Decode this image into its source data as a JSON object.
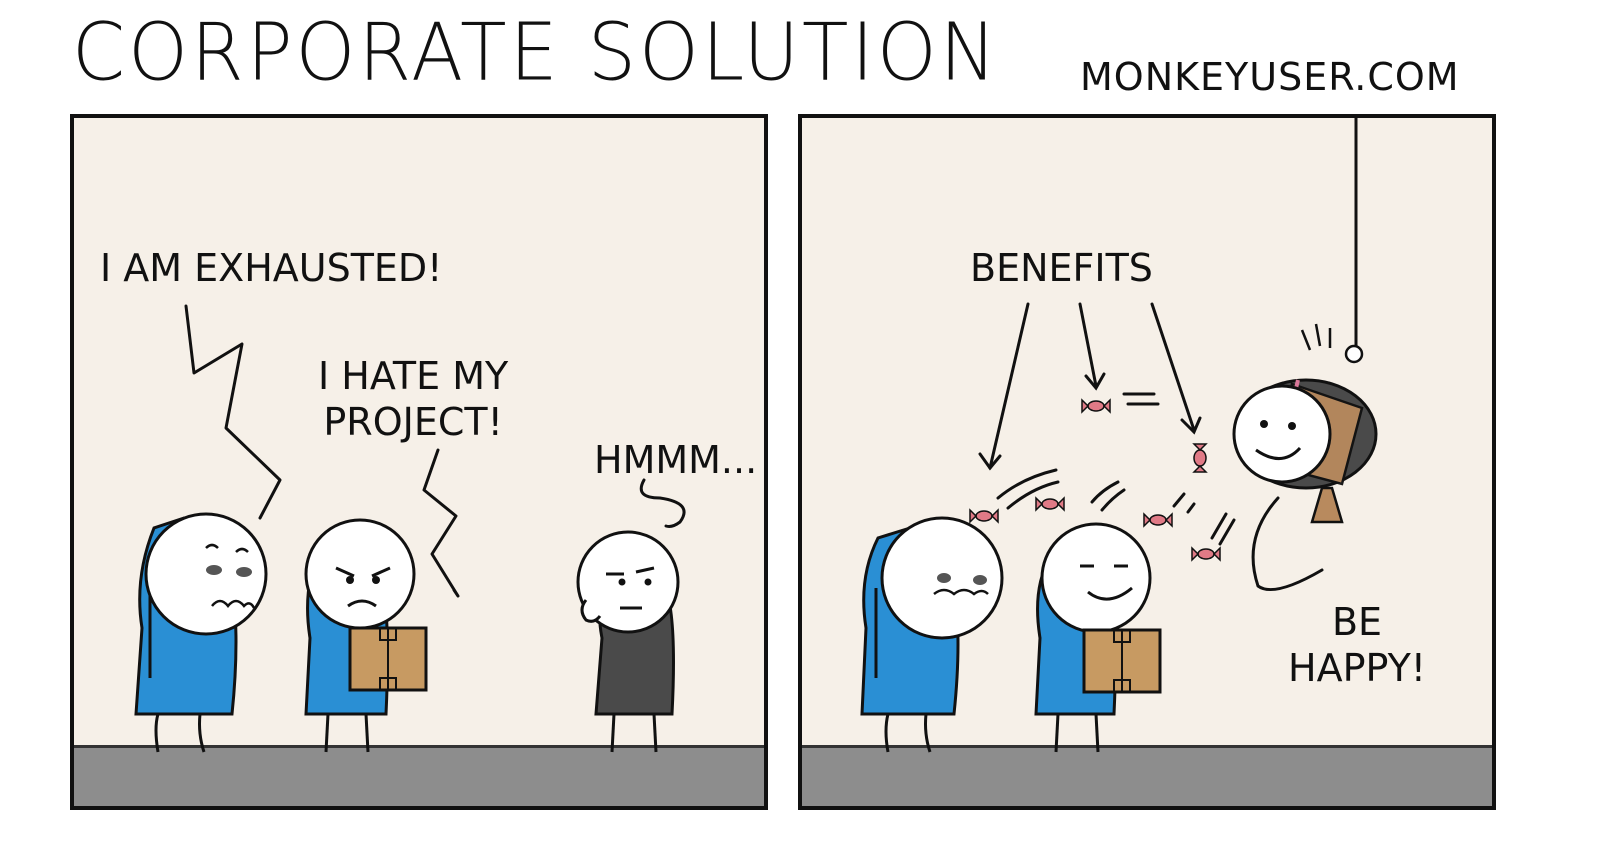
{
  "comic": {
    "title": "CORPORATE SOLUTION",
    "site": "MONKEYUSER.COM"
  },
  "panel_1": {
    "speech_exhausted": "I AM EXHAUSTED!",
    "speech_hate_project": "I HATE MY\nPROJECT!",
    "speech_hmmm": "HMMM..."
  },
  "panel_2": {
    "label_benefits": "BENEFITS",
    "speech_be_happy": "BE\nHAPPY!"
  },
  "colors": {
    "background": "#f6f0e8",
    "floor": "#8d8d8d",
    "shirt_blue": "#2a8fd4",
    "shirt_manager": "#4a4a4a",
    "box": "#c79a62",
    "candy": "#e07a86"
  },
  "icons": [
    "candy-icon",
    "pinata-manager-icon",
    "cardboard-box-icon"
  ]
}
